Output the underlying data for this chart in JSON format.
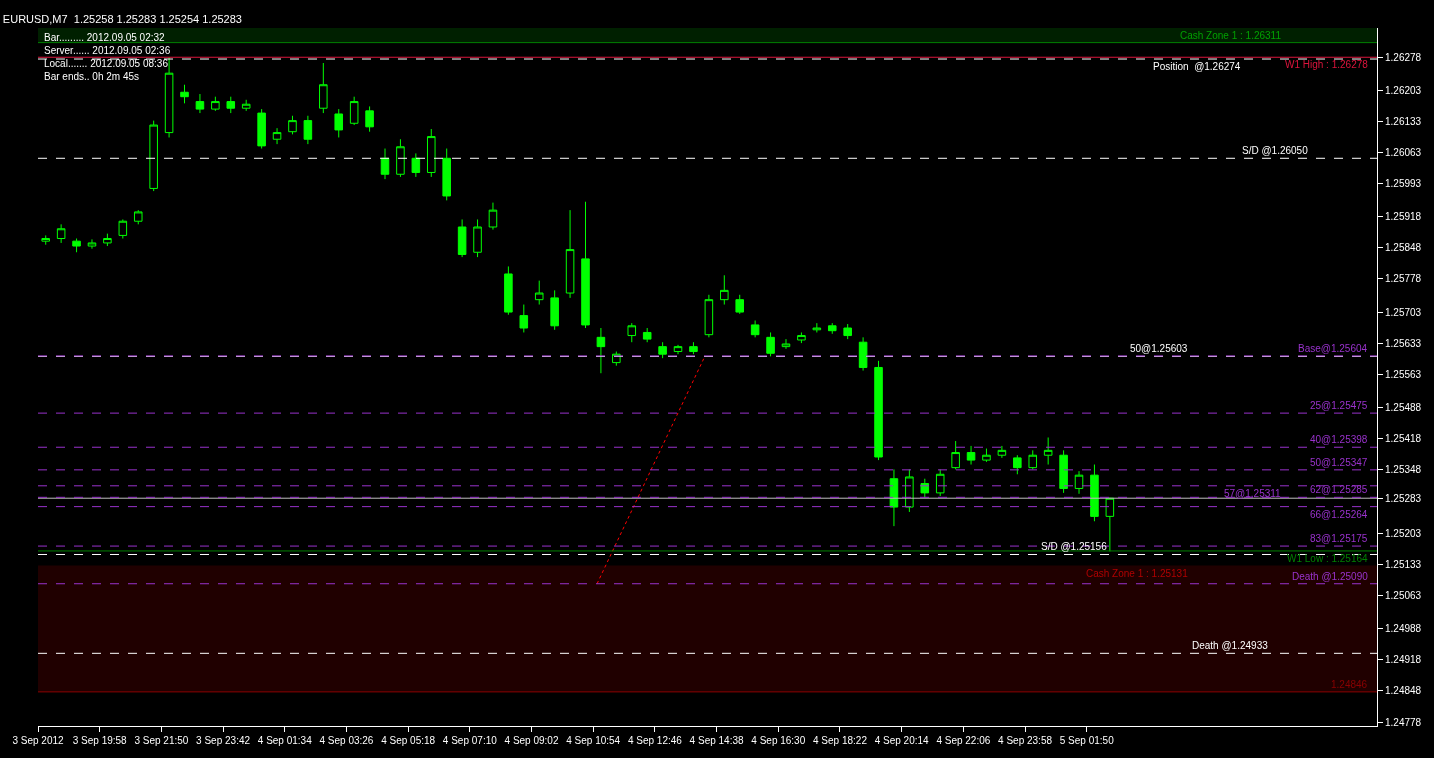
{
  "chart_data": {
    "type": "candlestick",
    "title": "EURUSD,M7  1.25258 1.25283 1.25254 1.25283",
    "annotations": [
      "Bar......... 2012.09.05 02:32",
      "Server...... 2012.09.05 02:36",
      "Local....... 2012.09.05 08:36",
      "Bar ends.. 0h 2m 45s"
    ],
    "color": "#00ff00",
    "x": [
      "2012-09-03T18:20",
      "2012-09-03T18:48",
      "2012-09-03T19:16",
      "2012-09-03T19:44",
      "2012-09-03T20:12",
      "2012-09-03T20:40",
      "2012-09-03T21:08",
      "2012-09-03T21:36",
      "2012-09-03T22:04",
      "2012-09-03T22:32",
      "2012-09-03T23:00",
      "2012-09-03T23:28",
      "2012-09-03T23:56",
      "2012-09-04T00:24",
      "2012-09-04T00:52",
      "2012-09-04T01:20",
      "2012-09-04T01:48",
      "2012-09-04T02:16",
      "2012-09-04T02:44",
      "2012-09-04T03:12",
      "2012-09-04T03:40",
      "2012-09-04T04:08",
      "2012-09-04T04:36",
      "2012-09-04T05:04",
      "2012-09-04T05:32",
      "2012-09-04T06:00",
      "2012-09-04T06:28",
      "2012-09-04T06:56",
      "2012-09-04T07:24",
      "2012-09-04T07:52",
      "2012-09-04T08:20",
      "2012-09-04T08:48",
      "2012-09-04T09:16",
      "2012-09-04T09:44",
      "2012-09-04T10:12",
      "2012-09-04T10:40",
      "2012-09-04T11:08",
      "2012-09-04T11:36",
      "2012-09-04T12:04",
      "2012-09-04T12:32",
      "2012-09-04T13:00",
      "2012-09-04T13:28",
      "2012-09-04T13:56",
      "2012-09-04T14:24",
      "2012-09-04T14:52",
      "2012-09-04T15:20",
      "2012-09-04T15:48",
      "2012-09-04T16:16",
      "2012-09-04T16:44",
      "2012-09-04T17:12",
      "2012-09-04T17:40",
      "2012-09-04T18:08",
      "2012-09-04T18:36",
      "2012-09-04T19:04",
      "2012-09-04T19:32",
      "2012-09-04T20:00",
      "2012-09-04T20:28",
      "2012-09-04T20:56",
      "2012-09-04T21:24",
      "2012-09-04T21:52",
      "2012-09-04T22:20",
      "2012-09-04T22:48",
      "2012-09-04T23:16",
      "2012-09-04T23:44",
      "2012-09-05T00:12",
      "2012-09-05T00:40",
      "2012-09-05T01:08",
      "2012-09-05T01:36",
      "2012-09-05T02:04",
      "2012-09-05T02:32"
    ],
    "ohlc": [
      [
        1.25863,
        1.25876,
        1.25855,
        1.25869
      ],
      [
        1.25869,
        1.25901,
        1.25859,
        1.25891
      ],
      [
        1.25863,
        1.25869,
        1.25838,
        1.25852
      ],
      [
        1.25852,
        1.25867,
        1.25846,
        1.25859
      ],
      [
        1.25859,
        1.2588,
        1.25852,
        1.25869
      ],
      [
        1.25876,
        1.25912,
        1.25869,
        1.25908
      ],
      [
        1.25908,
        1.25933,
        1.25901,
        1.25929
      ],
      [
        1.25982,
        1.26135,
        1.25976,
        1.26125
      ],
      [
        1.26108,
        1.26278,
        1.26097,
        1.26242
      ],
      [
        1.26199,
        1.26216,
        1.26174,
        1.26189
      ],
      [
        1.26178,
        1.26195,
        1.26152,
        1.26161
      ],
      [
        1.26161,
        1.26189,
        1.26157,
        1.26178
      ],
      [
        1.26178,
        1.26189,
        1.26152,
        1.26163
      ],
      [
        1.26163,
        1.26182,
        1.26157,
        1.26172
      ],
      [
        1.26152,
        1.26161,
        1.26072,
        1.26078
      ],
      [
        1.26093,
        1.26118,
        1.26082,
        1.26108
      ],
      [
        1.2611,
        1.26146,
        1.26104,
        1.26135
      ],
      [
        1.26135,
        1.26146,
        1.26082,
        1.26093
      ],
      [
        1.26163,
        1.26265,
        1.26152,
        1.26216
      ],
      [
        1.2615,
        1.26161,
        1.26097,
        1.26114
      ],
      [
        1.26129,
        1.26189,
        1.26125,
        1.26178
      ],
      [
        1.26157,
        1.26167,
        1.2611,
        1.26121
      ],
      [
        1.2605,
        1.26072,
        1.26003,
        1.26014
      ],
      [
        1.26014,
        1.26093,
        1.26008,
        1.26076
      ],
      [
        1.2605,
        1.26061,
        1.26008,
        1.26018
      ],
      [
        1.26018,
        1.26116,
        1.26008,
        1.26099
      ],
      [
        1.2605,
        1.26072,
        1.25955,
        1.25965
      ],
      [
        1.25895,
        1.25912,
        1.25827,
        1.25833
      ],
      [
        1.25838,
        1.25912,
        1.25827,
        1.25895
      ],
      [
        1.25895,
        1.2595,
        1.25889,
        1.25933
      ],
      [
        1.25789,
        1.25806,
        1.25697,
        1.25703
      ],
      [
        1.25695,
        1.2572,
        1.25657,
        1.25667
      ],
      [
        1.25731,
        1.25774,
        1.2572,
        1.25746
      ],
      [
        1.25735,
        1.25752,
        1.25663,
        1.25672
      ],
      [
        1.25746,
        1.25933,
        1.25735,
        1.25844
      ],
      [
        1.25823,
        1.25952,
        1.25667,
        1.25674
      ],
      [
        1.25646,
        1.25667,
        1.25565,
        1.25625
      ],
      [
        1.25589,
        1.25614,
        1.25582,
        1.25608
      ],
      [
        1.2565,
        1.25678,
        1.25635,
        1.25672
      ],
      [
        1.25657,
        1.25667,
        1.25635,
        1.25642
      ],
      [
        1.25625,
        1.25635,
        1.25599,
        1.25608
      ],
      [
        1.25614,
        1.25629,
        1.25608,
        1.25625
      ],
      [
        1.25625,
        1.25635,
        1.25608,
        1.25614
      ],
      [
        1.25652,
        1.25742,
        1.25646,
        1.25731
      ],
      [
        1.25731,
        1.25786,
        1.2572,
        1.25752
      ],
      [
        1.25731,
        1.25742,
        1.25699,
        1.25703
      ],
      [
        1.25674,
        1.25684,
        1.25646,
        1.25652
      ],
      [
        1.25646,
        1.25657,
        1.25603,
        1.2561
      ],
      [
        1.25625,
        1.25642,
        1.2562,
        1.25631
      ],
      [
        1.2564,
        1.25657,
        1.25633,
        1.2565
      ],
      [
        1.25663,
        1.25678,
        1.25657,
        1.25667
      ],
      [
        1.25672,
        1.25678,
        1.25654,
        1.25661
      ],
      [
        1.25667,
        1.25676,
        1.25642,
        1.2565
      ],
      [
        1.25635,
        1.25646,
        1.25571,
        1.25578
      ],
      [
        1.25578,
        1.25593,
        1.25369,
        1.25376
      ],
      [
        1.25327,
        1.25348,
        1.2522,
        1.25263
      ],
      [
        1.25263,
        1.25348,
        1.25252,
        1.25331
      ],
      [
        1.25316,
        1.25327,
        1.25284,
        1.25295
      ],
      [
        1.25295,
        1.25348,
        1.25288,
        1.25337
      ],
      [
        1.25352,
        1.25412,
        1.25348,
        1.25386
      ],
      [
        1.25386,
        1.25401,
        1.25359,
        1.25369
      ],
      [
        1.25369,
        1.25395,
        1.25365,
        1.2538
      ],
      [
        1.2538,
        1.25401,
        1.25374,
        1.25391
      ],
      [
        1.25374,
        1.2538,
        1.25337,
        1.25352
      ],
      [
        1.25352,
        1.25391,
        1.25348,
        1.2538
      ],
      [
        1.2538,
        1.2542,
        1.25359,
        1.25391
      ],
      [
        1.2538,
        1.25391,
        1.25295,
        1.25305
      ],
      [
        1.25305,
        1.25344,
        1.25293,
        1.25335
      ],
      [
        1.25335,
        1.25359,
        1.25231,
        1.25242
      ],
      [
        1.25242,
        1.25284,
        1.25163,
        1.25283
      ]
    ],
    "series": [
      {
        "type": "line",
        "color": "#ff0000",
        "line_style": "dotted",
        "x": [
          "2012-09-04T11:01",
          "2012-09-04T14:17"
        ],
        "values": [
          1.2509,
          1.25604
        ]
      }
    ],
    "xlim": [
      "2012-09-03T18:06",
      "2012-09-05T10:37"
    ],
    "xticks": [
      {
        "value": "2012-09-03T18:06",
        "label": "3 Sep 2012"
      },
      {
        "value": "2012-09-03T19:58",
        "label": "3 Sep 19:58"
      },
      {
        "value": "2012-09-03T21:50",
        "label": "3 Sep 21:50"
      },
      {
        "value": "2012-09-03T23:42",
        "label": "3 Sep 23:42"
      },
      {
        "value": "2012-09-04T01:34",
        "label": "4 Sep 01:34"
      },
      {
        "value": "2012-09-04T03:26",
        "label": "4 Sep 03:26"
      },
      {
        "value": "2012-09-04T05:18",
        "label": "4 Sep 05:18"
      },
      {
        "value": "2012-09-04T07:10",
        "label": "4 Sep 07:10"
      },
      {
        "value": "2012-09-04T09:02",
        "label": "4 Sep 09:02"
      },
      {
        "value": "2012-09-04T10:54",
        "label": "4 Sep 10:54"
      },
      {
        "value": "2012-09-04T12:46",
        "label": "4 Sep 12:46"
      },
      {
        "value": "2012-09-04T14:38",
        "label": "4 Sep 14:38"
      },
      {
        "value": "2012-09-04T16:30",
        "label": "4 Sep 16:30"
      },
      {
        "value": "2012-09-04T18:22",
        "label": "4 Sep 18:22"
      },
      {
        "value": "2012-09-04T20:14",
        "label": "4 Sep 20:14"
      },
      {
        "value": "2012-09-04T22:06",
        "label": "4 Sep 22:06"
      },
      {
        "value": "2012-09-04T23:58",
        "label": "4 Sep 23:58"
      },
      {
        "value": "2012-09-05T01:50",
        "label": "5 Sep 01:50"
      }
    ],
    "ylim": [
      1.24769,
      1.26344
    ],
    "yticks": [
      1.26278,
      1.26203,
      1.26133,
      1.26063,
      1.25993,
      1.25918,
      1.25848,
      1.25778,
      1.25703,
      1.25633,
      1.25563,
      1.25488,
      1.25418,
      1.25348,
      1.25283,
      1.25203,
      1.25133,
      1.25063,
      1.24988,
      1.24918,
      1.24848,
      1.24778
    ],
    "ref_lines": [
      {
        "axis": "y",
        "value": 1.26278,
        "label": "W1 High : 1.26278",
        "color": "#dc143c",
        "line_style": "solid"
      },
      {
        "axis": "y",
        "value": 1.26274,
        "label": "Position  @1.26274",
        "color": "#ffffff",
        "line_style": "dashed"
      },
      {
        "axis": "y",
        "value": 1.2605,
        "label": "S/D @1.26050",
        "color": "#ffffff",
        "line_style": "dashed"
      },
      {
        "axis": "y",
        "value": 1.25603,
        "label": "50@1.25603",
        "color": "#ffffff",
        "line_style": "dashed"
      },
      {
        "axis": "y",
        "value": 1.25604,
        "label": "Base@1.25604",
        "color": "#9932cc",
        "line_style": "dashed"
      },
      {
        "axis": "y",
        "value": 1.25475,
        "label": "25@1.25475",
        "color": "#9932cc",
        "line_style": "dashed"
      },
      {
        "axis": "y",
        "value": 1.25398,
        "label": "40@1.25398",
        "color": "#9932cc",
        "line_style": "dashed"
      },
      {
        "axis": "y",
        "value": 1.25347,
        "label": "50@1.25347",
        "color": "#9932cc",
        "line_style": "dashed"
      },
      {
        "axis": "y",
        "value": 1.25311,
        "label": "57@1.25311",
        "color": "#9932cc",
        "line_style": "dashed"
      },
      {
        "axis": "y",
        "value": 1.25283,
        "color": "#c0c0c0",
        "line_style": "solid"
      },
      {
        "axis": "y",
        "value": 1.25285,
        "label": "62@1.25285",
        "color": "#9932cc",
        "line_style": "dashed"
      },
      {
        "axis": "y",
        "value": 1.25264,
        "label": "66@1.25264",
        "color": "#9932cc",
        "line_style": "dashed"
      },
      {
        "axis": "y",
        "value": 1.25175,
        "label": "83@1.25175",
        "color": "#9932cc",
        "line_style": "dashed"
      },
      {
        "axis": "y",
        "value": 1.25164,
        "label": "W1 Low : 1.25164",
        "color": "#008000",
        "line_style": "solid"
      },
      {
        "axis": "y",
        "value": 1.25156,
        "label": "S/D @1.25156",
        "color": "#ffffff",
        "line_style": "dashed"
      },
      {
        "axis": "y",
        "value": 1.2509,
        "label": "Death @1.25090",
        "color": "#9932cc",
        "line_style": "dashed"
      },
      {
        "axis": "y",
        "value": 1.24933,
        "label": "Death @1.24933",
        "color": "#ffffff",
        "line_style": "dashed"
      },
      {
        "axis": "y",
        "value": 1.24846,
        "label": "1.24846",
        "color": "#8b0000",
        "line_style": "solid"
      },
      {
        "axis": "y",
        "value": 1.26311,
        "color": "#008000",
        "line_style": "solid"
      }
    ],
    "bands": [
      {
        "axis": "y",
        "from": 1.26311,
        "to": 1.26344,
        "label": "Cash Zone 1 : 1.26311",
        "color": "#002000"
      },
      {
        "axis": "y",
        "from": 1.24846,
        "to": 1.25131,
        "label": "Cash Zone 1 : 1.25131",
        "color": "#200000"
      }
    ],
    "grid": false
  }
}
